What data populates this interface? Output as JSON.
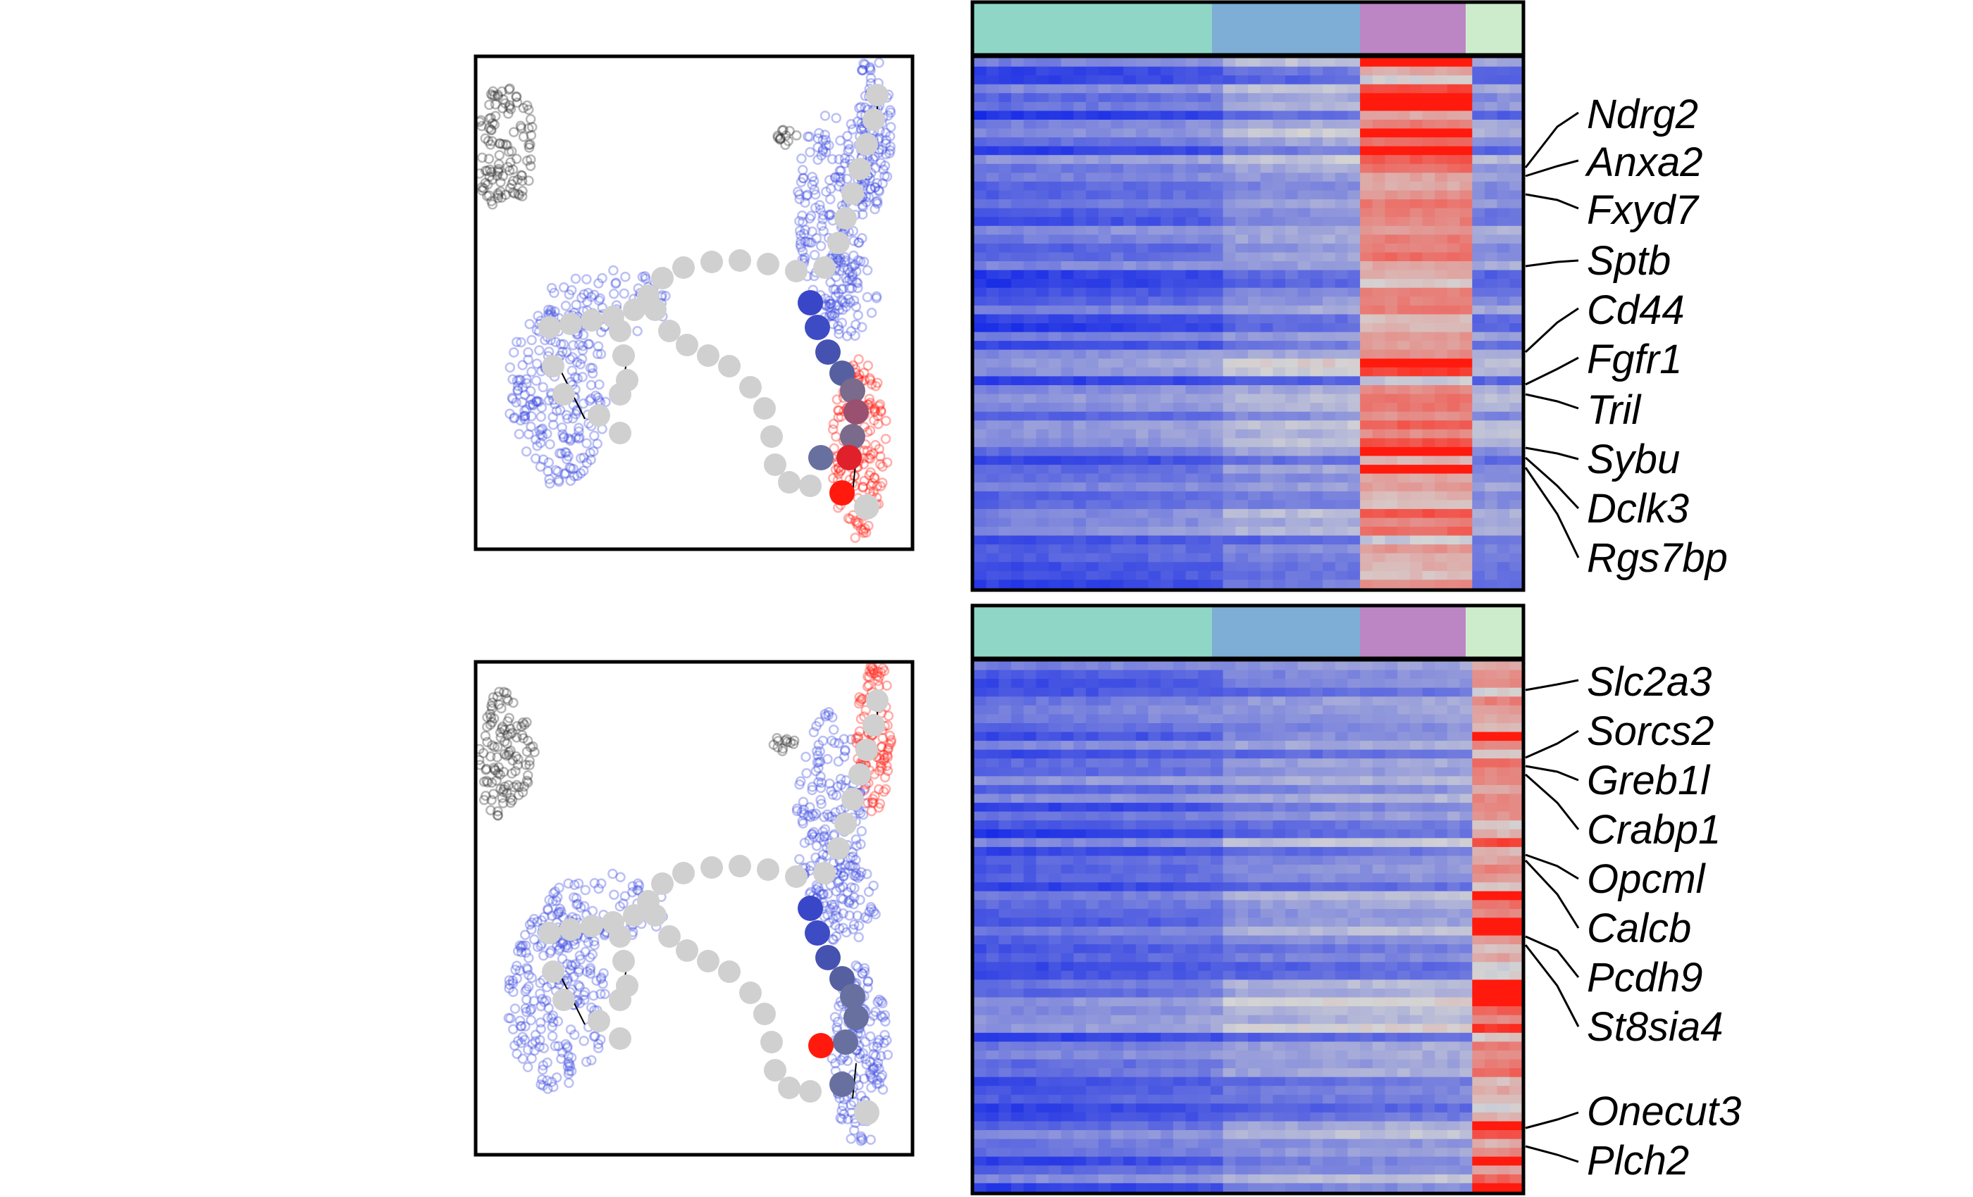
{
  "colors": {
    "heat_low": "#0a1fe8",
    "heat_mid": "#d4d4d4",
    "heat_high": "#ff1a0d",
    "trajectory_node": "#d0d0d0",
    "outlier_cluster": "#2e2e2e",
    "cell_cloud": "#3c4be0"
  },
  "cluster_bar_colors": [
    "#8fd6c6",
    "#7eaed6",
    "#bc85c4",
    "#cceccc"
  ],
  "panels": [
    {
      "id": "top",
      "genes": [
        "Ndrg2",
        "Anxa2",
        "Fxyd7",
        "Sptb",
        "Cd44",
        "Fgfr1",
        "Tril",
        "Sybu",
        "Dclk3",
        "Rgs7bp"
      ],
      "highlight_cluster": 3,
      "embedding_highlight": "lower-right"
    },
    {
      "id": "bottom",
      "genes": [
        "Slc2a3",
        "Sorcs2",
        "Greb1l",
        "Crabp1",
        "Opcml",
        "Calcb",
        "Pcdh9",
        "St8sia4",
        "Onecut3",
        "Plch2"
      ],
      "highlight_cluster": 4,
      "embedding_highlight": "upper-right"
    }
  ]
}
